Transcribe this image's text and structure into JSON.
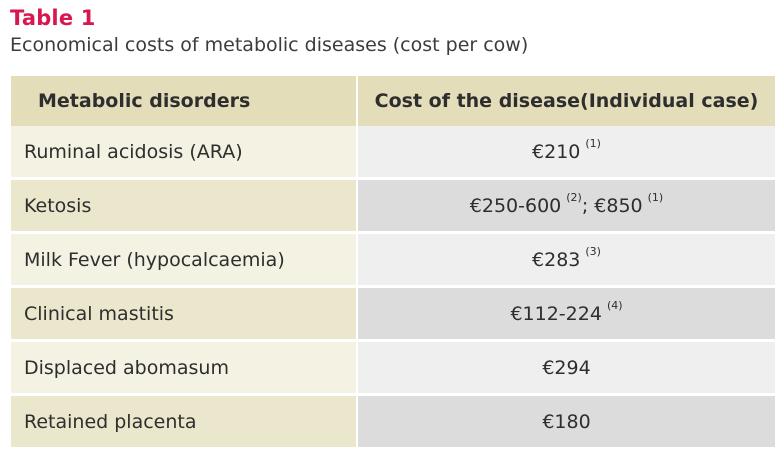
{
  "caption": {
    "label": "Table 1",
    "title": "Economical costs of metabolic diseases (cost per cow)"
  },
  "table": {
    "headers": [
      "Metabolic disorders",
      "Cost of the disease(Individual case)"
    ],
    "rows": [
      {
        "disorder": "Ruminal acidosis (ARA)",
        "cost_a": "€210",
        "ref_a": "(1)",
        "cost_b": "",
        "ref_b": ""
      },
      {
        "disorder": "Ketosis",
        "cost_a": "€250-600",
        "ref_a": "(2)",
        "cost_b": "; €850",
        "ref_b": "(1)"
      },
      {
        "disorder": "Milk Fever (hypocalcaemia)",
        "cost_a": "€283",
        "ref_a": "(3)",
        "cost_b": "",
        "ref_b": ""
      },
      {
        "disorder": "Clinical mastitis",
        "cost_a": "€112-224",
        "ref_a": "(4)",
        "cost_b": "",
        "ref_b": ""
      },
      {
        "disorder": "Displaced abomasum",
        "cost_a": "€294",
        "ref_a": "",
        "cost_b": "",
        "ref_b": ""
      },
      {
        "disorder": "Retained placenta",
        "cost_a": "€180",
        "ref_a": "",
        "cost_b": "",
        "ref_b": ""
      }
    ]
  }
}
